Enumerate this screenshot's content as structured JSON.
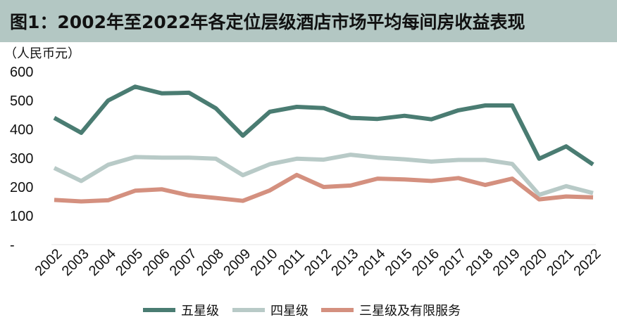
{
  "chart_data": {
    "type": "line",
    "title": "图1：2002年至2022年各定位层级酒店市场平均每间房收益表现",
    "unit_label": "（人民币元）",
    "categories": [
      "2002",
      "2003",
      "2004",
      "2005",
      "2006",
      "2007",
      "2008",
      "2009",
      "2010",
      "2011",
      "2012",
      "2013",
      "2014",
      "2015",
      "2016",
      "2017",
      "2018",
      "2019",
      "2020",
      "2021",
      "2022"
    ],
    "y_ticks": [
      "600",
      "500",
      "400",
      "300",
      "200",
      "100",
      "-"
    ],
    "ylim": [
      0,
      600
    ],
    "grid": false,
    "legend_position": "bottom",
    "series": [
      {
        "name": "五星级",
        "color": "#4a7c72",
        "values": [
          440,
          388,
          500,
          548,
          525,
          527,
          473,
          378,
          461,
          478,
          474,
          440,
          436,
          447,
          435,
          466,
          483,
          483,
          298,
          341,
          278
        ]
      },
      {
        "name": "四星级",
        "color": "#b8cac7",
        "values": [
          266,
          221,
          277,
          304,
          302,
          302,
          298,
          241,
          279,
          298,
          295,
          312,
          302,
          296,
          288,
          294,
          294,
          280,
          173,
          203,
          179
        ]
      },
      {
        "name": "三星级及有限服务",
        "color": "#d4907f",
        "values": [
          155,
          150,
          154,
          187,
          192,
          171,
          162,
          152,
          188,
          242,
          200,
          205,
          229,
          226,
          221,
          231,
          207,
          229,
          157,
          167,
          164
        ]
      }
    ]
  }
}
